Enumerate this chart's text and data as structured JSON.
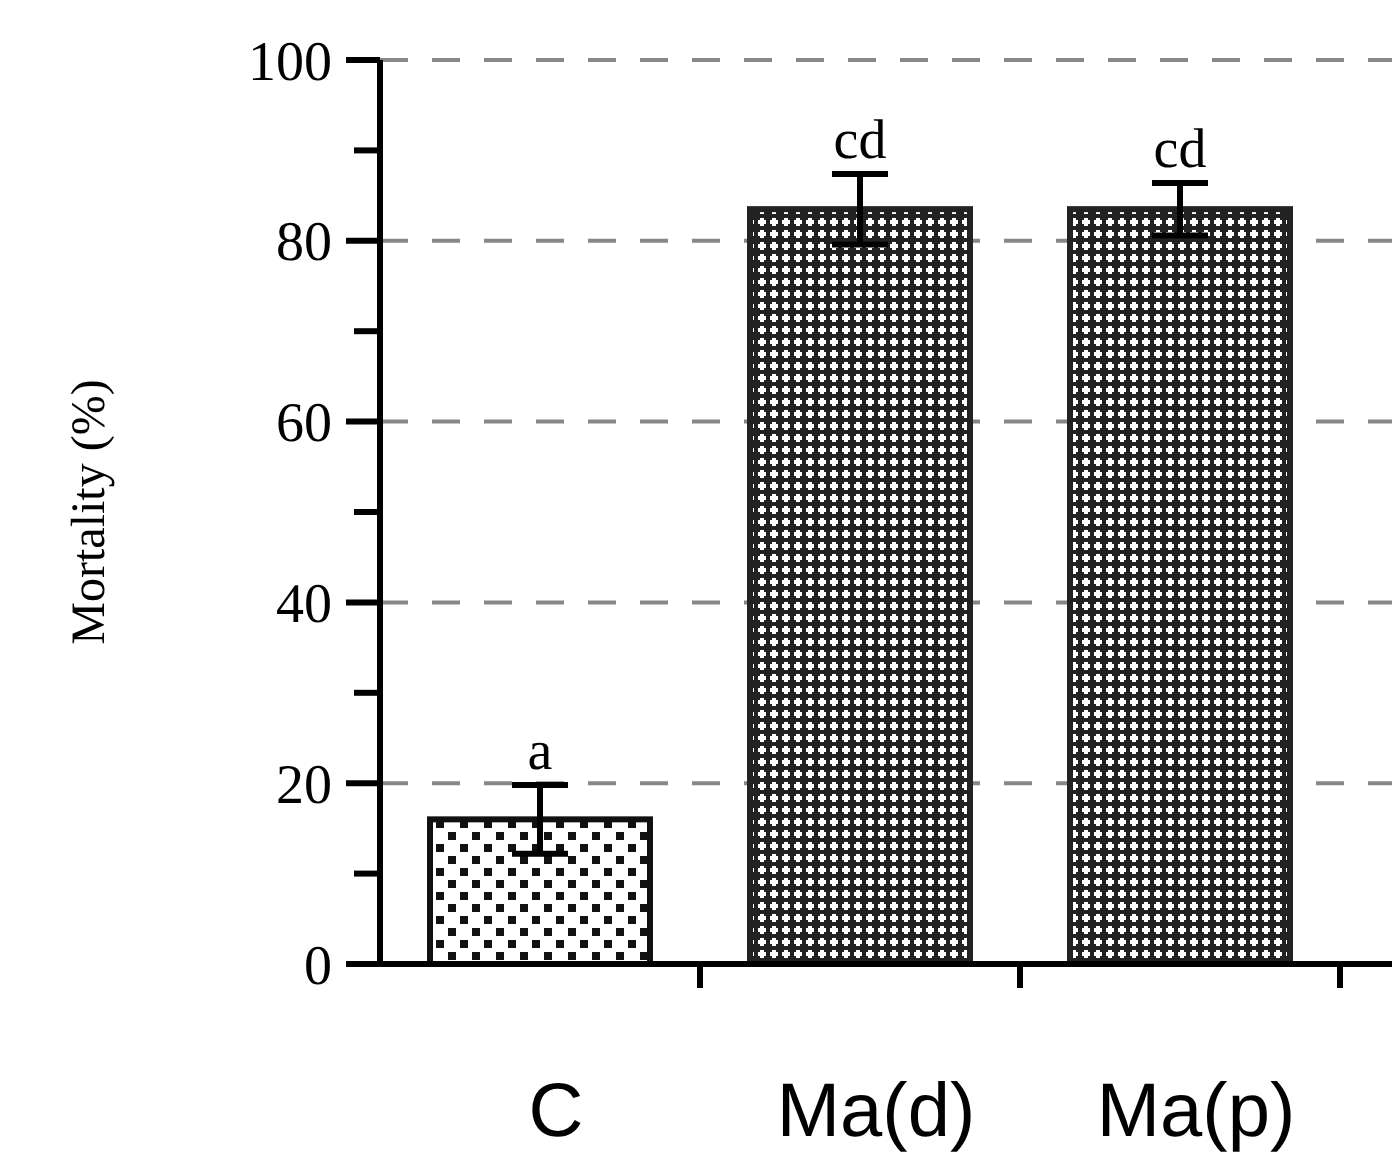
{
  "chart_data": {
    "type": "bar",
    "ylabel": "Mortality (%)",
    "categories": [
      "C",
      "Ma(d)",
      "Ma(p)"
    ],
    "values": [
      16,
      83.5,
      83.5
    ],
    "errors": [
      3.8,
      3.9,
      2.9
    ],
    "colors": [
      "#111111",
      "#222222",
      "#222222"
    ],
    "ylim": [
      0,
      100
    ],
    "yticks": [
      0,
      {
        "value": 10,
        "label": null
      },
      20,
      {
        "value": 30,
        "label": null
      },
      40,
      {
        "value": 50,
        "label": null
      },
      60,
      {
        "value": 70,
        "label": null
      },
      80,
      {
        "value": 90,
        "label": null
      },
      100
    ],
    "grid": "y",
    "annotations": [
      {
        "text": "a",
        "x": "C",
        "y": 19.8
      },
      {
        "text": "cd",
        "x": "Ma(d)",
        "y": 87.4
      },
      {
        "text": "cd",
        "x": "Ma(p)",
        "y": 86.4
      }
    ]
  }
}
